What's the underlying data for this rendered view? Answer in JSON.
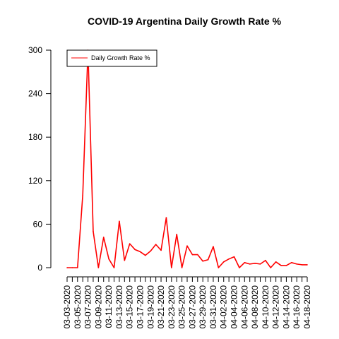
{
  "chart_data": {
    "type": "line",
    "title": "COVID-19 Argentina Daily Growth Rate %",
    "xlabel": "",
    "ylabel": "",
    "ylim": [
      0,
      300
    ],
    "yticks": [
      0,
      60,
      120,
      180,
      240,
      300
    ],
    "grid": false,
    "legend_position": "top-left",
    "x_tick_labels": [
      "03-03-2020",
      "03-05-2020",
      "03-07-2020",
      "03-09-2020",
      "03-11-2020",
      "03-13-2020",
      "03-15-2020",
      "03-17-2020",
      "03-19-2020",
      "03-21-2020",
      "03-23-2020",
      "03-25-2020",
      "03-27-2020",
      "03-29-2020",
      "03-31-2020",
      "04-02-2020",
      "04-04-2020",
      "04-06-2020",
      "04-08-2020",
      "04-10-2020",
      "04-12-2020",
      "04-14-2020",
      "04-16-2020",
      "04-18-2020"
    ],
    "series": [
      {
        "name": "Daily Growth Rate %",
        "color": "#ff0000",
        "values": [
          0,
          0,
          0,
          100,
          300,
          50,
          0,
          42,
          12,
          0,
          64,
          10,
          33,
          25,
          22,
          17,
          23,
          32,
          24,
          69,
          0,
          46,
          0,
          30,
          18,
          18,
          9,
          11,
          29,
          0,
          8,
          12,
          15,
          0,
          7,
          5,
          6,
          5,
          10,
          0,
          8,
          3,
          3,
          7,
          5,
          4,
          4
        ]
      }
    ]
  }
}
